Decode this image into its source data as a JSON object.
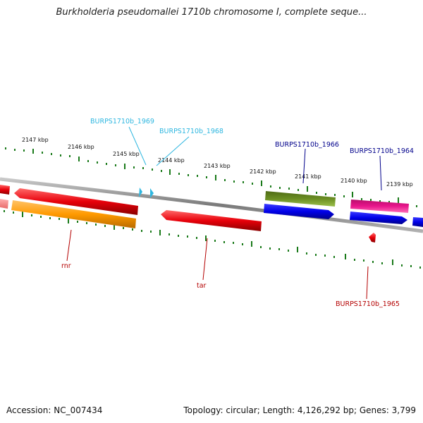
{
  "title": "Burkholderia pseudomallei 1710b chromosome I, complete seque...",
  "footer": {
    "accession": "Accession: NC_007434",
    "summary": "Topology: circular; Length: 4,126,292 bp; Genes: 3,799"
  },
  "kbp_ticks": [
    "2147 kbp",
    "2146 kbp",
    "2145 kbp",
    "2144 kbp",
    "2143 kbp",
    "2142 kbp",
    "2141 kbp",
    "2140 kbp",
    "2139 kbp"
  ],
  "gene_labels": {
    "burps1710b_1969": "BURPS1710b_1969",
    "burps1710b_1968": "BURPS1710b_1968",
    "burps1710b_1966": "BURPS1710b_1966",
    "burps1710b_1964": "BURPS1710b_1964",
    "rnr": "rnr",
    "tar": "tar",
    "burps1710b_1965": "BURPS1710b_1965"
  },
  "colors": {
    "red": "#e8000a",
    "orange": "#ff9a00",
    "olive": "#6b8e23",
    "blue": "#0000e8",
    "magenta": "#e8168c",
    "cyan": "#2fb7e0",
    "navy": "#00008b",
    "darkred": "#b40000",
    "tick": "#1a7a1a",
    "backbone": "#8c8c8c"
  }
}
